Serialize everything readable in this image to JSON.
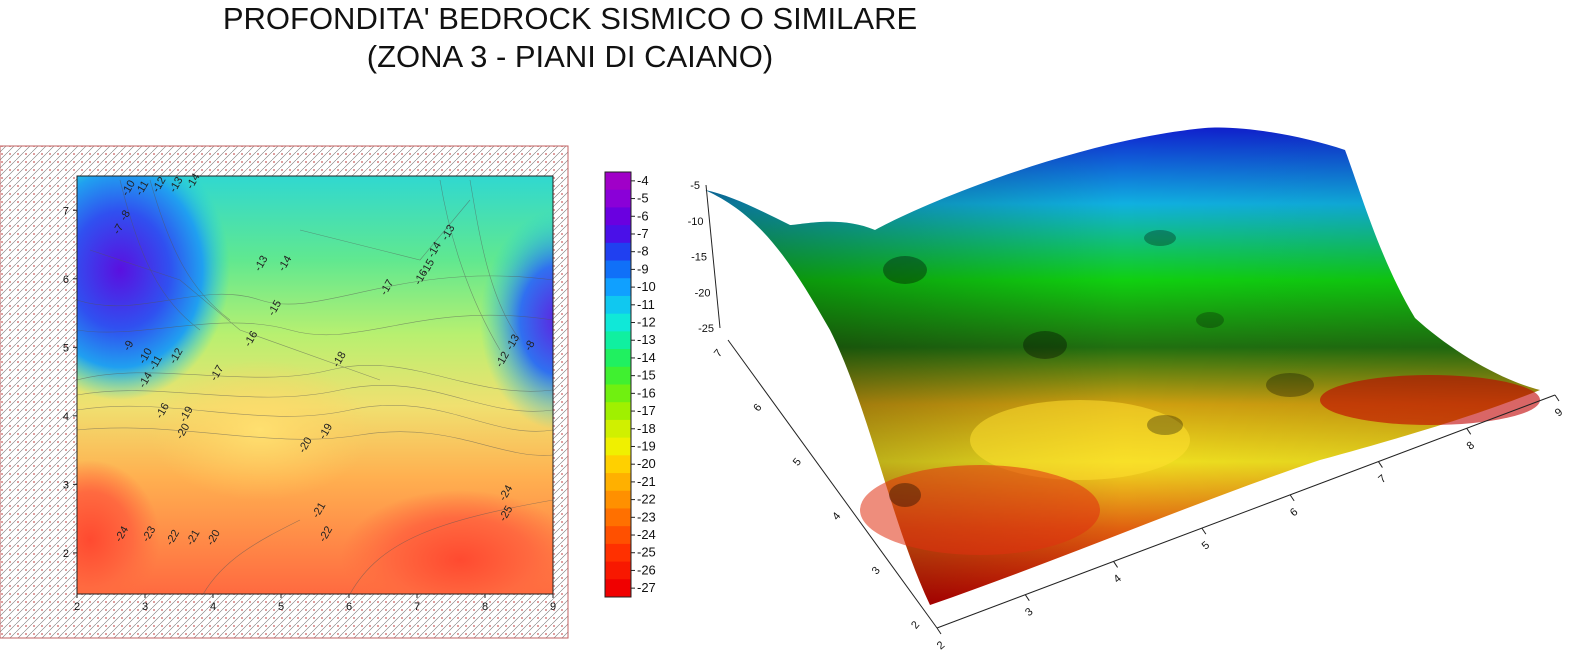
{
  "title": {
    "line1": "PROFONDITA' BEDROCK SISMICO O SIMILARE",
    "line2": "(ZONA 3 - PIANI DI CAIANO)"
  },
  "chart_data": [
    {
      "type": "heatmap",
      "subtype": "contour-map",
      "x_ticks": [
        "2",
        "3",
        "4",
        "5",
        "6",
        "7",
        "8",
        "9"
      ],
      "y_ticks": [
        "2",
        "3",
        "4",
        "5",
        "6",
        "7"
      ],
      "xlim": [
        2,
        9
      ],
      "ylim": [
        1.4,
        7.5
      ],
      "grid": false,
      "contour_labels": [
        {
          "text": "-10",
          "x": 2.8,
          "y": 7.3
        },
        {
          "text": "-11",
          "x": 3.0,
          "y": 7.3
        },
        {
          "text": "-12",
          "x": 3.25,
          "y": 7.35
        },
        {
          "text": "-13",
          "x": 3.5,
          "y": 7.35
        },
        {
          "text": "-14",
          "x": 3.75,
          "y": 7.4
        },
        {
          "text": "-8",
          "x": 2.75,
          "y": 6.9
        },
        {
          "text": "-7",
          "x": 2.65,
          "y": 6.7
        },
        {
          "text": "-13",
          "x": 4.75,
          "y": 6.2
        },
        {
          "text": "-14",
          "x": 5.1,
          "y": 6.2
        },
        {
          "text": "-15",
          "x": 4.95,
          "y": 5.55
        },
        {
          "text": "-16",
          "x": 4.6,
          "y": 5.1
        },
        {
          "text": "-17",
          "x": 4.1,
          "y": 4.6
        },
        {
          "text": "-18",
          "x": 5.9,
          "y": 4.8
        },
        {
          "text": "-17",
          "x": 6.6,
          "y": 5.85
        },
        {
          "text": "-16",
          "x": 7.1,
          "y": 6.0
        },
        {
          "text": "-15",
          "x": 7.2,
          "y": 6.15
        },
        {
          "text": "-14",
          "x": 7.3,
          "y": 6.4
        },
        {
          "text": "-13",
          "x": 7.5,
          "y": 6.65
        },
        {
          "text": "-9",
          "x": 2.8,
          "y": 5.0
        },
        {
          "text": "-10",
          "x": 3.05,
          "y": 4.85
        },
        {
          "text": "-11",
          "x": 3.2,
          "y": 4.75
        },
        {
          "text": "-12",
          "x": 3.5,
          "y": 4.85
        },
        {
          "text": "-14",
          "x": 3.05,
          "y": 4.5
        },
        {
          "text": "-16",
          "x": 3.3,
          "y": 4.05
        },
        {
          "text": "-19",
          "x": 3.65,
          "y": 4.0
        },
        {
          "text": "-20",
          "x": 3.6,
          "y": 3.75
        },
        {
          "text": "-19",
          "x": 5.7,
          "y": 3.75
        },
        {
          "text": "-20",
          "x": 5.4,
          "y": 3.55
        },
        {
          "text": "-21",
          "x": 5.6,
          "y": 2.6
        },
        {
          "text": "-22",
          "x": 5.7,
          "y": 2.25
        },
        {
          "text": "-24",
          "x": 2.7,
          "y": 2.25
        },
        {
          "text": "-23",
          "x": 3.1,
          "y": 2.25
        },
        {
          "text": "-22",
          "x": 3.45,
          "y": 2.2
        },
        {
          "text": "-21",
          "x": 3.75,
          "y": 2.2
        },
        {
          "text": "-20",
          "x": 4.05,
          "y": 2.2
        },
        {
          "text": "-24",
          "x": 8.35,
          "y": 2.85
        },
        {
          "text": "-25",
          "x": 8.35,
          "y": 2.55
        },
        {
          "text": "-13",
          "x": 8.45,
          "y": 5.05
        },
        {
          "text": "-12",
          "x": 8.3,
          "y": 4.8
        },
        {
          "text": "-8",
          "x": 8.7,
          "y": 5.0
        }
      ]
    },
    {
      "type": "heatmap",
      "subtype": "colorbar",
      "levels": [
        -4,
        -5,
        -6,
        -7,
        -8,
        -9,
        -10,
        -11,
        -12,
        -13,
        -14,
        -15,
        -16,
        -17,
        -18,
        -19,
        -20,
        -21,
        -22,
        -23,
        -24,
        -25,
        -26,
        -27
      ],
      "labels": [
        "-4",
        "-5",
        "-6",
        "-7",
        "-8",
        "-9",
        "-10",
        "-11",
        "-12",
        "-13",
        "-14",
        "-15",
        "-16",
        "-17",
        "-18",
        "-19",
        "-20",
        "-21",
        "-22",
        "-23",
        "-24",
        "-25",
        "-26",
        "-27"
      ],
      "colors": [
        "#a000c8",
        "#8a00d8",
        "#6a00e0",
        "#4a10e8",
        "#2040f0",
        "#1070f8",
        "#10a0ff",
        "#10c8f0",
        "#10e8d8",
        "#10f0a0",
        "#20f060",
        "#40f030",
        "#70f010",
        "#a0f000",
        "#d0f000",
        "#f0f000",
        "#ffd000",
        "#ffb000",
        "#ff9000",
        "#ff7000",
        "#ff5000",
        "#ff3000",
        "#f81800",
        "#f00000"
      ]
    },
    {
      "type": "heatmap",
      "subtype": "3d-surface",
      "z_ticks": [
        "-5",
        "-10",
        "-15",
        "-20",
        "-25"
      ],
      "y_ticks": [
        "7",
        "6",
        "5",
        "4",
        "3",
        "2"
      ],
      "x_ticks": [
        "2",
        "3",
        "4",
        "5",
        "6",
        "7",
        "8",
        "9"
      ],
      "zlim": [
        -27,
        -4
      ]
    }
  ]
}
